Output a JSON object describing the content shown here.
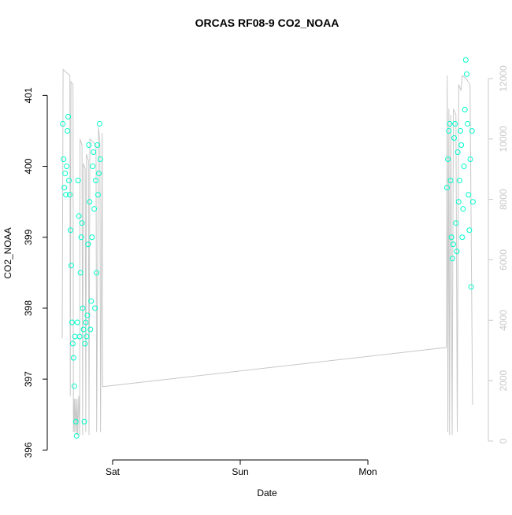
{
  "chart_data": {
    "type": "scatter",
    "title": "ORCAS RF08-9 CO2_NOAA",
    "xlabel": "Date",
    "ylabel": "CO2_NOAA",
    "xlim": [
      0.488,
      3.944
    ],
    "xticks": [
      {
        "value": 1,
        "label": "Sat"
      },
      {
        "value": 2,
        "label": "Sun"
      },
      {
        "value": 3,
        "label": "Mon"
      }
    ],
    "ylim": [
      395.86,
      401.68
    ],
    "yticks": [
      396,
      397,
      398,
      399,
      400,
      401
    ],
    "y2lim": [
      -625,
      13040
    ],
    "y2ticks": [
      0,
      2000,
      4000,
      6000,
      8000,
      10000,
      12000
    ],
    "series": [
      {
        "type": "scatter",
        "color": "#00ffcc",
        "x": [
          0.61,
          0.616,
          0.622,
          0.628,
          0.634,
          0.64,
          0.646,
          0.652,
          0.658,
          0.664,
          0.67,
          0.676,
          0.682,
          0.688,
          0.694,
          0.7,
          0.706,
          0.712,
          0.718,
          0.724,
          0.73,
          0.736,
          0.742,
          0.748,
          0.754,
          0.76,
          0.766,
          0.772,
          0.778,
          0.784,
          0.79,
          0.796,
          0.802,
          0.808,
          0.814,
          0.82,
          0.826,
          0.832,
          0.838,
          0.844,
          0.85,
          0.856,
          0.862,
          0.868,
          0.874,
          0.88,
          0.886,
          0.892,
          0.898,
          0.904,
          3.62,
          3.627,
          3.634,
          3.641,
          3.648,
          3.655,
          3.662,
          3.669,
          3.676,
          3.683,
          3.69,
          3.697,
          3.704,
          3.711,
          3.718,
          3.725,
          3.732,
          3.739,
          3.746,
          3.753,
          3.76,
          3.767,
          3.774,
          3.781,
          3.788,
          3.795,
          3.802,
          3.809,
          3.816,
          3.823
        ],
        "values": [
          400.6,
          400.1,
          399.7,
          399.9,
          399.6,
          400.0,
          400.5,
          400.7,
          399.8,
          399.6,
          399.1,
          398.6,
          397.8,
          397.5,
          397.3,
          396.9,
          397.6,
          396.4,
          396.2,
          397.8,
          399.8,
          399.3,
          397.6,
          398.5,
          399.0,
          399.2,
          398.0,
          397.7,
          396.4,
          397.5,
          397.8,
          397.6,
          397.9,
          398.9,
          400.3,
          399.5,
          397.7,
          398.1,
          399.0,
          400.0,
          400.2,
          399.4,
          398.0,
          399.8,
          398.5,
          400.3,
          399.6,
          399.9,
          400.6,
          400.1,
          399.7,
          400.1,
          400.5,
          400.6,
          399.8,
          399.0,
          398.7,
          398.9,
          400.4,
          400.6,
          399.2,
          398.8,
          400.2,
          399.5,
          399.8,
          400.5,
          400.3,
          399.0,
          399.4,
          400.0,
          400.8,
          401.5,
          401.3,
          400.6,
          399.6,
          399.1,
          400.1,
          398.3,
          400.5,
          399.5
        ]
      },
      {
        "type": "line",
        "axis": "y2",
        "color": "#c8c8c8",
        "x": [
          0.605,
          0.612,
          0.665,
          0.668,
          0.674,
          0.69,
          0.693,
          0.7,
          0.703,
          0.71,
          0.715,
          0.722,
          0.726,
          0.735,
          0.742,
          0.745,
          0.76,
          0.765,
          0.77,
          0.785,
          0.79,
          0.795,
          0.81,
          0.815,
          0.822,
          0.87,
          0.875,
          0.89,
          0.9,
          0.905,
          0.918,
          0.922,
          3.615,
          3.622,
          3.627,
          3.635,
          3.64,
          3.65,
          3.66,
          3.67,
          3.69,
          3.7,
          3.712,
          3.73,
          3.74,
          3.77,
          3.8,
          3.82
        ],
        "values": [
          3400,
          12300,
          12100,
          1500,
          11900,
          11800,
          300,
          1400,
          300,
          1400,
          200,
          1400,
          200,
          1500,
          200,
          10000,
          9800,
          200,
          9200,
          9000,
          300,
          9500,
          9300,
          200,
          10000,
          9800,
          300,
          10400,
          9900,
          300,
          10200,
          1800,
          3100,
          12100,
          300,
          11000,
          200,
          10800,
          200,
          11000,
          10800,
          300,
          11800,
          11600,
          12100,
          12000,
          11800,
          1200
        ]
      }
    ]
  }
}
